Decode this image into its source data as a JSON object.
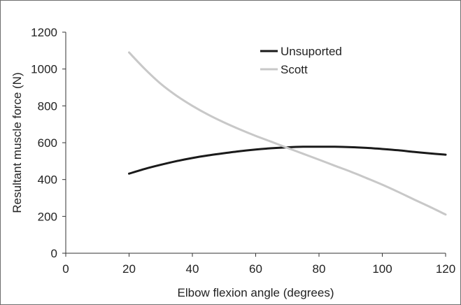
{
  "chart_data": {
    "type": "line",
    "xlabel": "Elbow flexion angle (degrees)",
    "ylabel": "Resultant muscle force (N)",
    "xlim": [
      0,
      120
    ],
    "ylim": [
      0,
      1200
    ],
    "xticks": [
      0,
      20,
      40,
      60,
      80,
      100,
      120
    ],
    "yticks": [
      0,
      200,
      400,
      600,
      800,
      1000,
      1200
    ],
    "grid": false,
    "legend_position": "top-right",
    "series": [
      {
        "name": "Unsuported",
        "color": "#1a1a1a",
        "x": [
          20,
          25,
          30,
          35,
          40,
          45,
          50,
          55,
          60,
          65,
          70,
          75,
          80,
          85,
          90,
          95,
          100,
          105,
          110,
          115,
          120
        ],
        "y": [
          432,
          458,
          480,
          500,
          517,
          531,
          543,
          554,
          563,
          570,
          575,
          578,
          578,
          578,
          576,
          572,
          566,
          559,
          550,
          542,
          535
        ]
      },
      {
        "name": "Scott",
        "color": "#c8c8c8",
        "x": [
          20,
          25,
          30,
          35,
          40,
          45,
          50,
          55,
          60,
          65,
          70,
          75,
          80,
          85,
          90,
          95,
          100,
          105,
          110,
          115,
          120
        ],
        "y": [
          1090,
          1000,
          920,
          855,
          800,
          752,
          710,
          672,
          637,
          605,
          572,
          540,
          508,
          475,
          443,
          408,
          372,
          333,
          292,
          252,
          210
        ]
      }
    ]
  }
}
